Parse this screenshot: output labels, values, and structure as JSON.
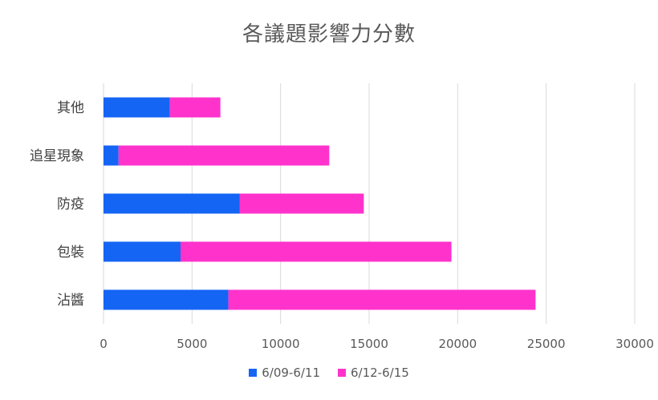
{
  "title": "各議題影響力分數",
  "colors": {
    "s1": "#1565F5",
    "s2": "#FF33CC",
    "grid": "#D9D9D9"
  },
  "chart_data": {
    "type": "bar",
    "orientation": "horizontal",
    "stacked": true,
    "categories": [
      "其他",
      "追星現象",
      "防疫",
      "包裝",
      "沾醬"
    ],
    "series": [
      {
        "name": "6/09-6/11",
        "values": [
          3750,
          850,
          7700,
          4350,
          7050
        ]
      },
      {
        "name": "6/12-6/15",
        "values": [
          2850,
          11900,
          7000,
          15300,
          17350
        ]
      }
    ],
    "xlim": [
      0,
      30000
    ],
    "xticks": [
      0,
      5000,
      10000,
      15000,
      20000,
      25000,
      30000
    ],
    "grid": true,
    "legend_position": "bottom"
  }
}
